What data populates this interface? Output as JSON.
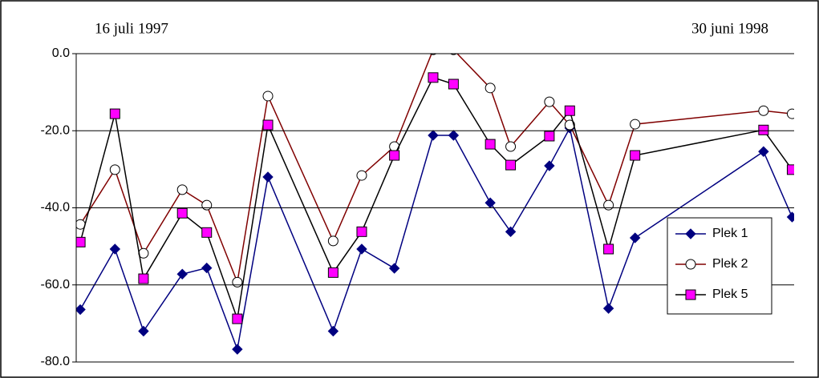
{
  "chart_data": {
    "type": "line",
    "annotations": [
      "16 juli 1997",
      "30 juni 1998"
    ],
    "x": [
      0,
      17,
      31,
      50,
      62,
      77,
      92,
      124,
      138,
      154,
      173,
      183,
      201,
      211,
      230,
      240,
      259,
      272,
      335,
      349
    ],
    "xlim": [
      -2,
      350
    ],
    "ylim": [
      -80,
      0
    ],
    "yticks": [
      {
        "value": 0,
        "label": "0.0"
      },
      {
        "value": -20,
        "label": "-20.0"
      },
      {
        "value": -40,
        "label": "-40.0"
      },
      {
        "value": -60,
        "label": "-60.0"
      },
      {
        "value": -80,
        "label": "-80.0"
      }
    ],
    "grid": true,
    "legend": "right",
    "series": [
      {
        "name": "Plek 1",
        "color": "#000080",
        "marker": "diamond",
        "marker_fill": "#000080",
        "values": [
          -66.4,
          -50.7,
          -72,
          -57.2,
          -55.6,
          -76.7,
          -32,
          -72,
          -50.7,
          -55.7,
          -21.2,
          -21.2,
          -38.7,
          -46.2,
          -29.1,
          -19.3,
          -66.1,
          -47.8,
          -25.4,
          -42.4
        ]
      },
      {
        "name": "Plek 2",
        "color": "#800000",
        "marker": "circle",
        "marker_fill": "#ffffff",
        "values": [
          -44.3,
          -30.1,
          -51.8,
          -35.3,
          -39.3,
          -59.3,
          -11,
          -48.6,
          -31.6,
          -24.1,
          1,
          1,
          -8.9,
          -24.1,
          -12.5,
          -18.5,
          -39.3,
          -18.3,
          -14.8,
          -15.6
        ]
      },
      {
        "name": "Plek 5",
        "color": "#000000",
        "marker": "square",
        "marker_fill": "#ff00ff",
        "values": [
          -48.9,
          -15.6,
          -58.4,
          -41.4,
          -46.4,
          -68.8,
          -18.5,
          -56.8,
          -46.2,
          -26.4,
          -6.2,
          -7.9,
          -23.5,
          -28.9,
          -21.4,
          -14.8,
          -50.7,
          -26.4,
          -19.8,
          -30.1
        ]
      }
    ]
  }
}
